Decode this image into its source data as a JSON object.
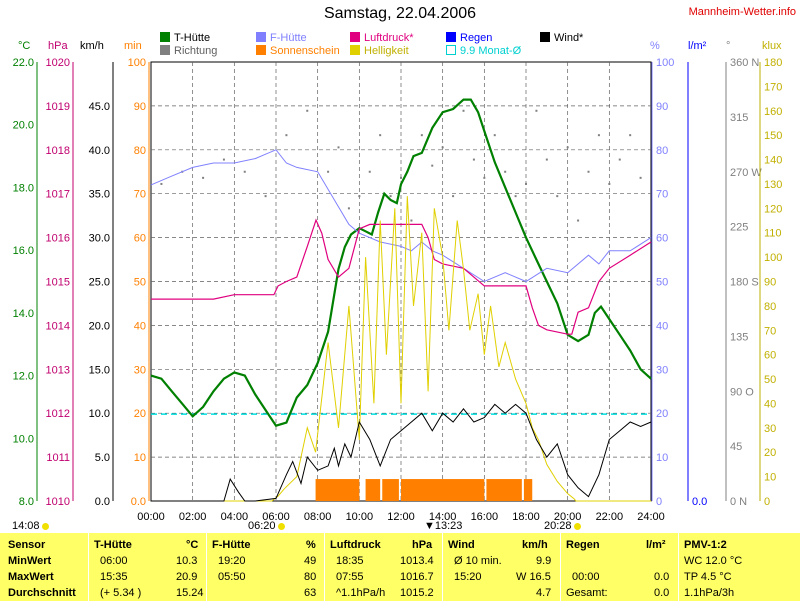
{
  "title": "Samstag, 22.04.2006",
  "brand": "Mannheim-Wetter.info",
  "legend": [
    {
      "label": "T-Hütte",
      "color": "#008000"
    },
    {
      "label": "Richtung",
      "color": "#808080"
    },
    {
      "label": "F-Hütte",
      "color": "#8080ff"
    },
    {
      "label": "Sonnenschein",
      "color": "#ff8000"
    },
    {
      "label": "Luftdruck*",
      "color": "#e0007f"
    },
    {
      "label": "Helligkeit",
      "color": "#e0d000"
    },
    {
      "label": "Regen",
      "color": "#0000ff"
    },
    {
      "label": "9.9 Monat-Ø",
      "color": "#00e0e0"
    },
    {
      "label": "Wind*",
      "color": "#000000"
    }
  ],
  "units": {
    "temp": "°C",
    "pressure": "hPa",
    "wind": "km/h",
    "sun": "min",
    "humidity": "%",
    "rain": "l/m²",
    "dir": "°",
    "lux": "klux"
  },
  "chart_data": {
    "type": "line",
    "x_ticks": [
      "00:00",
      "02:00",
      "04:00",
      "06:00",
      "08:00",
      "10:00",
      "12:00",
      "14:00",
      "16:00",
      "18:00",
      "20:00",
      "22:00",
      "24:00"
    ],
    "axes": {
      "temp": {
        "label": "°C",
        "ylim": [
          8,
          22
        ],
        "ticks": [
          "8.0",
          "10.0",
          "12.0",
          "14.0",
          "16.0",
          "18.0",
          "20.0",
          "22.0"
        ]
      },
      "pressure": {
        "label": "hPa",
        "ylim": [
          1010,
          1020
        ],
        "ticks": [
          "1010",
          "1011",
          "1012",
          "1013",
          "1014",
          "1015",
          "1016",
          "1017",
          "1018",
          "1019",
          "1020"
        ]
      },
      "wind": {
        "label": "km/h",
        "ylim": [
          0,
          50
        ],
        "ticks": [
          "0.0",
          "5.0",
          "10.0",
          "15.0",
          "20.0",
          "25.0",
          "30.0",
          "35.0",
          "40.0",
          "45.0"
        ]
      },
      "sun": {
        "label": "min",
        "ylim": [
          0,
          100
        ],
        "ticks": [
          "0.0",
          "10",
          "20",
          "30",
          "40",
          "50",
          "60",
          "70",
          "80",
          "90",
          "100"
        ]
      },
      "humidity": {
        "label": "%",
        "ylim": [
          0,
          100
        ],
        "ticks": [
          "0",
          "10",
          "20",
          "30",
          "40",
          "50",
          "60",
          "70",
          "80",
          "90",
          "100"
        ]
      },
      "rain": {
        "label": "l/m²",
        "ylim": [
          0,
          1
        ],
        "ticks": [
          "0.0"
        ]
      },
      "dir": {
        "label": "°",
        "ylim": [
          0,
          360
        ],
        "ticks": [
          "0 N",
          "45",
          "90 O",
          "135",
          "180 S",
          "225",
          "270 W",
          "315",
          "360 N"
        ]
      },
      "lux": {
        "label": "klux",
        "ylim": [
          0,
          180
        ],
        "ticks": [
          "0",
          "10",
          "20",
          "30",
          "40",
          "50",
          "60",
          "70",
          "80",
          "90",
          "100",
          "110",
          "120",
          "130",
          "140",
          "150",
          "160",
          "170",
          "180"
        ]
      }
    },
    "series": [
      {
        "name": "T-Hütte",
        "axis": "temp",
        "color": "#008000",
        "x": [
          0,
          0.5,
          1,
          1.5,
          2,
          2.5,
          3,
          3.5,
          4,
          4.5,
          5,
          5.5,
          6,
          6.5,
          7,
          7.5,
          8,
          8.5,
          9,
          9.3,
          9.6,
          10,
          10.3,
          10.6,
          10.9,
          11.2,
          11.5,
          11.8,
          12,
          12.3,
          12.6,
          13,
          13.5,
          14,
          14.5,
          15,
          15.35,
          15.7,
          16,
          16.5,
          17,
          17.5,
          18,
          18.5,
          19,
          19.5,
          20,
          20.5,
          21,
          21.3,
          21.6,
          22,
          22.5,
          23,
          23.5,
          24
        ],
        "values": [
          12.0,
          11.9,
          11.5,
          11.1,
          10.7,
          11.0,
          11.5,
          11.9,
          12.1,
          12.0,
          11.4,
          10.9,
          10.4,
          10.5,
          11.3,
          11.7,
          12.4,
          13.4,
          15.4,
          16.1,
          16.5,
          16.7,
          16.6,
          16.5,
          17.2,
          17.8,
          17.6,
          17.5,
          18.1,
          18.5,
          19.0,
          19.1,
          19.9,
          20.4,
          20.5,
          20.8,
          20.8,
          20.4,
          19.8,
          18.8,
          18.0,
          17.2,
          16.4,
          15.7,
          15.0,
          14.3,
          13.3,
          13.1,
          13.3,
          14.0,
          14.2,
          13.8,
          13.3,
          12.8,
          12.2,
          11.9
        ]
      },
      {
        "name": "F-Hütte",
        "axis": "humidity",
        "color": "#8080ff",
        "x": [
          0,
          1,
          2,
          3,
          4,
          5,
          5.5,
          6,
          6.5,
          7,
          8,
          9,
          9.5,
          10,
          11,
          12,
          12.5,
          13,
          13.5,
          14,
          15,
          16,
          17,
          18,
          19,
          20,
          21,
          21.5,
          22,
          23,
          24
        ],
        "values": [
          72,
          74,
          76,
          77,
          77,
          78,
          79,
          80,
          77,
          76,
          75,
          67,
          63,
          61,
          59,
          58,
          57,
          59,
          57,
          56,
          53,
          50,
          52,
          50,
          53,
          52,
          56,
          54,
          57,
          57,
          60
        ]
      },
      {
        "name": "Luftdruck*",
        "axis": "pressure",
        "color": "#e0007f",
        "x": [
          0,
          1,
          2,
          3,
          4,
          5,
          5.9,
          6.1,
          6.5,
          7,
          7.5,
          7.92,
          8.2,
          8.5,
          9,
          9.5,
          10,
          10.5,
          11,
          12,
          13,
          13.3,
          13.6,
          14,
          15,
          16,
          17,
          18,
          18.3,
          18.6,
          19,
          20,
          20.2,
          20.5,
          21,
          21.5,
          22,
          23,
          24
        ],
        "values": [
          1014.6,
          1014.6,
          1014.6,
          1014.6,
          1014.7,
          1014.7,
          1014.7,
          1014.9,
          1015.0,
          1015.1,
          1015.8,
          1016.4,
          1016.1,
          1015.5,
          1015.1,
          1015.3,
          1016.2,
          1016.3,
          1016.3,
          1016.3,
          1016.3,
          1016.0,
          1015.5,
          1015.4,
          1015.3,
          1014.9,
          1014.9,
          1014.9,
          1014.4,
          1014.0,
          1013.9,
          1013.8,
          1013.8,
          1014.3,
          1014.4,
          1015.0,
          1015.3,
          1015.6,
          1015.9
        ]
      },
      {
        "name": "Helligkeit",
        "axis": "lux",
        "color": "#e0d000",
        "x": [
          0,
          5.8,
          6.1,
          6.4,
          7,
          7.5,
          7.9,
          8.5,
          9,
          9.5,
          10,
          10.3,
          10.7,
          11,
          11.3,
          11.7,
          12,
          12.3,
          12.6,
          13,
          13.3,
          13.6,
          14,
          14.3,
          14.7,
          15,
          15.3,
          15.7,
          16,
          16.3,
          16.7,
          17,
          17.5,
          18,
          18.3,
          18.6,
          19,
          19.5,
          20,
          20.3,
          20.4,
          24
        ],
        "values": [
          0,
          0,
          2,
          5,
          10,
          30,
          20,
          65,
          30,
          80,
          25,
          100,
          40,
          115,
          60,
          120,
          40,
          125,
          80,
          110,
          45,
          120,
          100,
          70,
          115,
          95,
          70,
          85,
          60,
          80,
          55,
          65,
          50,
          40,
          30,
          25,
          15,
          8,
          3,
          1,
          0,
          0
        ]
      },
      {
        "name": "Wind*",
        "axis": "wind",
        "color": "#000000",
        "x": [
          0,
          3.5,
          3.8,
          4.2,
          4.5,
          5,
          6,
          6.5,
          6.8,
          7.2,
          7.5,
          8,
          8.5,
          8.8,
          9,
          9.3,
          9.6,
          10,
          10.5,
          11,
          11.5,
          12,
          12.5,
          13,
          13.5,
          14,
          14.5,
          15,
          15.5,
          16,
          16.5,
          17,
          17.5,
          18,
          18.5,
          19,
          19.5,
          20,
          20.5,
          21,
          21.5,
          22,
          22.5,
          23,
          23.5,
          24
        ],
        "values": [
          0,
          0,
          2.5,
          1,
          0,
          0,
          0.3,
          3,
          4.5,
          2,
          5,
          3.5,
          4,
          6,
          4,
          6.5,
          5,
          9,
          7,
          4,
          7,
          8,
          9,
          10,
          8,
          10,
          9,
          10.5,
          9,
          9.5,
          11,
          10,
          11,
          10,
          7,
          5,
          6.5,
          3,
          1.5,
          0.5,
          3,
          7,
          8,
          9,
          8.5,
          9
        ]
      }
    ],
    "sunshine": {
      "name": "Sonnenschein",
      "axis": "sun",
      "color": "#ff8000",
      "intervals": [
        [
          7.9,
          10.0
        ],
        [
          10.3,
          11.0
        ],
        [
          11.1,
          11.9
        ],
        [
          12.0,
          16.0
        ],
        [
          16.1,
          17.8
        ],
        [
          17.9,
          18.3
        ]
      ],
      "level": 5
    },
    "monthly_avg_wind": {
      "name": "9.9 Monat-Ø",
      "axis": "wind",
      "value": 9.9,
      "color": "#00e0e0"
    },
    "direction_points": [
      [
        0.5,
        260
      ],
      [
        1.5,
        270
      ],
      [
        2.5,
        265
      ],
      [
        3.5,
        280
      ],
      [
        4.5,
        270
      ],
      [
        5.5,
        250
      ],
      [
        6.5,
        300
      ],
      [
        7.5,
        320
      ],
      [
        8.5,
        270
      ],
      [
        9.0,
        290
      ],
      [
        9.5,
        240
      ],
      [
        10,
        250
      ],
      [
        10.5,
        270
      ],
      [
        11,
        300
      ],
      [
        11.5,
        250
      ],
      [
        12,
        265
      ],
      [
        12.5,
        230
      ],
      [
        13,
        300
      ],
      [
        13.5,
        275
      ],
      [
        14,
        290
      ],
      [
        14.5,
        250
      ],
      [
        15,
        320
      ],
      [
        15.5,
        280
      ],
      [
        16,
        265
      ],
      [
        16.5,
        300
      ],
      [
        17,
        270
      ],
      [
        17.5,
        250
      ],
      [
        18,
        260
      ],
      [
        18.5,
        320
      ],
      [
        19,
        280
      ],
      [
        19.5,
        250
      ],
      [
        20,
        290
      ],
      [
        20.5,
        230
      ],
      [
        21,
        270
      ],
      [
        21.5,
        300
      ],
      [
        22,
        260
      ],
      [
        22.5,
        280
      ],
      [
        23,
        300
      ],
      [
        23.5,
        265
      ]
    ]
  },
  "sun_events": [
    {
      "label": "14:08",
      "type": "label"
    },
    {
      "label": "06:20",
      "type": "rise"
    },
    {
      "label": "13:23",
      "type": "noon"
    },
    {
      "label": "20:28",
      "type": "set"
    }
  ],
  "table": {
    "headers": [
      "Sensor",
      "T-Hütte",
      "°C",
      "F-Hütte",
      "%",
      "Luftdruck",
      "hPa",
      "Wind",
      "km/h",
      "Regen",
      "l/m²",
      "PMV-1:2"
    ],
    "rows": [
      {
        "label": "MinWert",
        "t_time": "06:00",
        "t_val": "10.3",
        "f_time": "19:20",
        "f_val": "49",
        "p_time": "18:35",
        "p_val": "1013.4",
        "w_time": "Ø 10 min.",
        "w_val": "9.9",
        "r_time": "",
        "r_val": "",
        "pmv": "WC 12.0 °C"
      },
      {
        "label": "MaxWert",
        "t_time": "15:35",
        "t_val": "20.9",
        "f_time": "05:50",
        "f_val": "80",
        "p_time": "07:55",
        "p_val": "1016.7",
        "w_time": "15:20",
        "w_val": "W 16.5",
        "r_time": "00:00",
        "r_val": "0.0",
        "pmv": "TP 4.5 °C"
      },
      {
        "label": "Durchschnitt",
        "t_time": "(+ 5.34 )",
        "t_val": "15.24",
        "f_time": "",
        "f_val": "63",
        "p_time": "^1.1hPa/h",
        "p_val": "1015.2",
        "w_time": "",
        "w_val": "4.7",
        "r_time": "Gesamt:",
        "r_val": "0.0",
        "pmv": "1.1hPa/3h"
      }
    ]
  }
}
